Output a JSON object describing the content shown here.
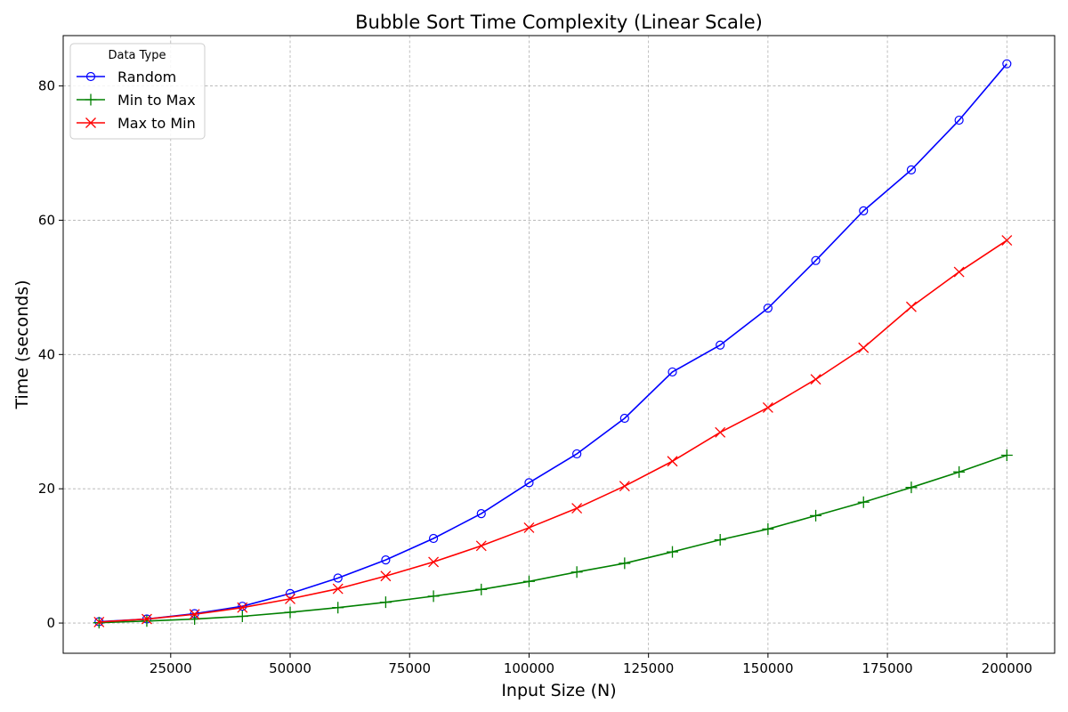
{
  "chart_data": {
    "type": "line",
    "title": "Bubble Sort Time Complexity (Linear Scale)",
    "xlabel": "Input Size (N)",
    "ylabel": "Time (seconds)",
    "xlim": [
      2500,
      210000
    ],
    "ylim": [
      -4.5,
      87.5
    ],
    "xticks": [
      25000,
      50000,
      75000,
      100000,
      125000,
      150000,
      175000,
      200000
    ],
    "yticks": [
      0,
      20,
      40,
      60,
      80
    ],
    "grid": true,
    "legend": {
      "title": "Data Type",
      "placement": "top-left"
    },
    "x": [
      10000,
      20000,
      30000,
      40000,
      50000,
      60000,
      70000,
      80000,
      90000,
      100000,
      110000,
      120000,
      130000,
      140000,
      150000,
      160000,
      170000,
      180000,
      190000,
      200000
    ],
    "series": [
      {
        "name": "Random",
        "color": "#0000ff",
        "marker": "circle",
        "values": [
          0.2,
          0.6,
          1.4,
          2.5,
          4.4,
          6.7,
          9.4,
          12.6,
          16.3,
          20.9,
          25.2,
          30.5,
          37.4,
          41.4,
          46.9,
          54.0,
          61.4,
          67.5,
          74.9,
          83.3
        ]
      },
      {
        "name": "Min to Max",
        "color": "#008000",
        "marker": "plus",
        "values": [
          0.05,
          0.3,
          0.6,
          1.0,
          1.6,
          2.3,
          3.1,
          4.0,
          5.0,
          6.2,
          7.6,
          8.9,
          10.6,
          12.4,
          14.0,
          16.0,
          18.0,
          20.2,
          22.5,
          25.0
        ]
      },
      {
        "name": "Max to Min",
        "color": "#ff0000",
        "marker": "x",
        "values": [
          0.15,
          0.6,
          1.3,
          2.3,
          3.6,
          5.1,
          7.0,
          9.1,
          11.5,
          14.2,
          17.1,
          20.4,
          24.1,
          28.4,
          32.1,
          36.3,
          41.0,
          47.1,
          52.3,
          57.0
        ]
      }
    ]
  }
}
